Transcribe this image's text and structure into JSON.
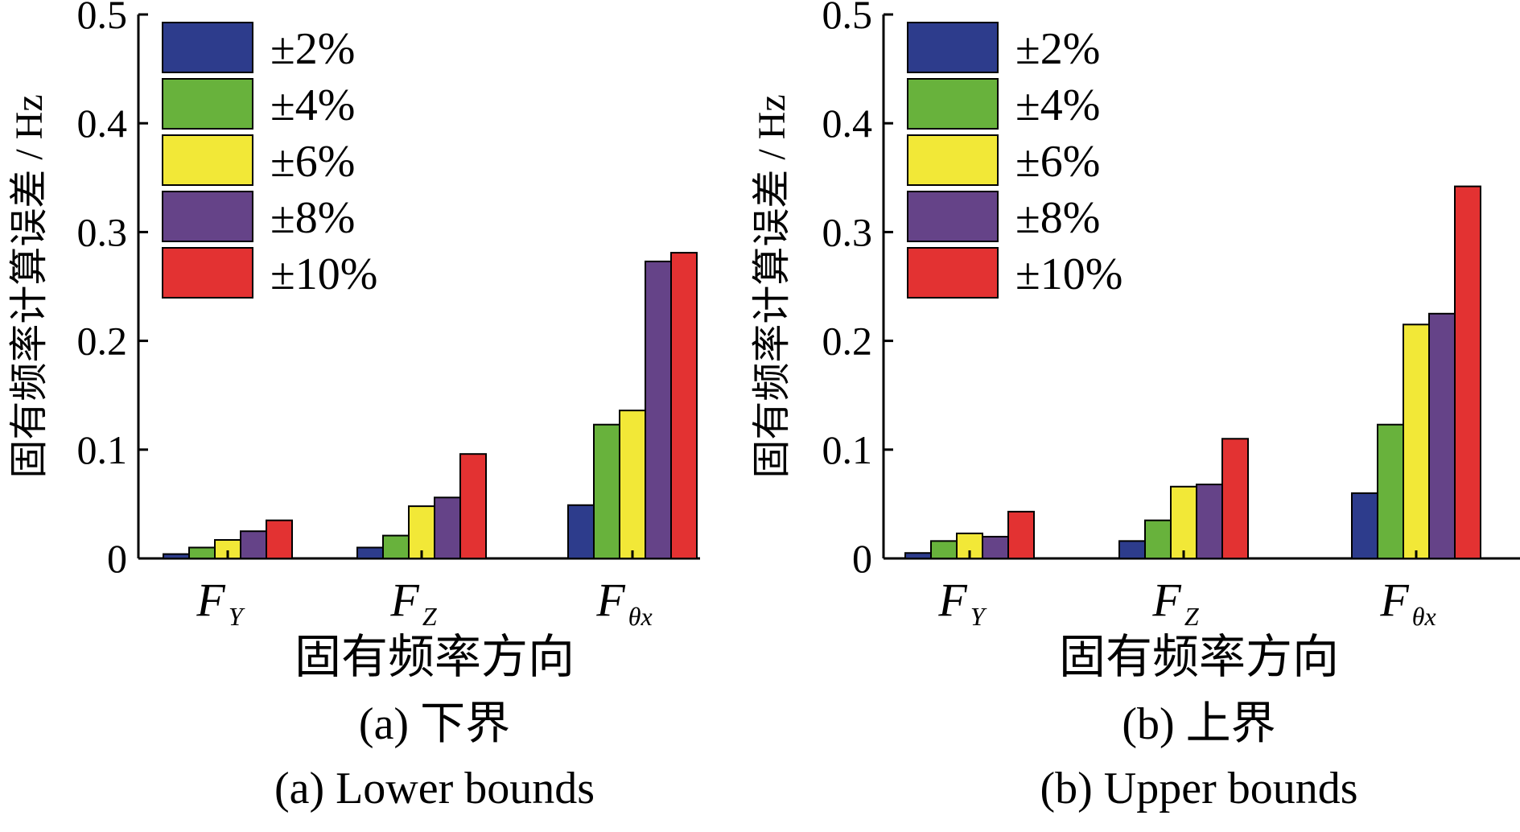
{
  "chart_data": [
    {
      "type": "bar",
      "caption_cn": "(a) 下界",
      "caption_en": "(a) Lower bounds",
      "xlabel": "固有频率方向",
      "ylabel": "固有频率计算误差 / Hz",
      "ylim": [
        0,
        0.5
      ],
      "yticks": [
        "0",
        "0.1",
        "0.2",
        "0.3",
        "0.4",
        "0.5"
      ],
      "categories": [
        {
          "main": "F",
          "sub": "Y"
        },
        {
          "main": "F",
          "sub": "Z"
        },
        {
          "main": "F",
          "sub": "θx"
        }
      ],
      "series": [
        {
          "name": "±2%",
          "color": "#2d3c8c",
          "values": [
            0.004,
            0.01,
            0.049
          ]
        },
        {
          "name": "±4%",
          "color": "#68b23c",
          "values": [
            0.01,
            0.021,
            0.123
          ]
        },
        {
          "name": "±6%",
          "color": "#f2e837",
          "values": [
            0.017,
            0.048,
            0.136
          ]
        },
        {
          "name": "±8%",
          "color": "#654388",
          "values": [
            0.025,
            0.056,
            0.273
          ]
        },
        {
          "name": "±10%",
          "color": "#e33232",
          "values": [
            0.035,
            0.096,
            0.281
          ]
        }
      ],
      "legend_position": "top-left",
      "grid": false
    },
    {
      "type": "bar",
      "caption_cn": "(b) 上界",
      "caption_en": "(b) Upper bounds",
      "xlabel": "固有频率方向",
      "ylabel": "固有频率计算误差 / Hz",
      "ylim": [
        0,
        0.5
      ],
      "yticks": [
        "0",
        "0.1",
        "0.2",
        "0.3",
        "0.4",
        "0.5"
      ],
      "categories": [
        {
          "main": "F",
          "sub": "Y"
        },
        {
          "main": "F",
          "sub": "Z"
        },
        {
          "main": "F",
          "sub": "θx"
        }
      ],
      "series": [
        {
          "name": "±2%",
          "color": "#2d3c8c",
          "values": [
            0.005,
            0.016,
            0.06
          ]
        },
        {
          "name": "±4%",
          "color": "#68b23c",
          "values": [
            0.016,
            0.035,
            0.123
          ]
        },
        {
          "name": "±6%",
          "color": "#f2e837",
          "values": [
            0.023,
            0.066,
            0.215
          ]
        },
        {
          "name": "±8%",
          "color": "#654388",
          "values": [
            0.02,
            0.068,
            0.225
          ]
        },
        {
          "name": "±10%",
          "color": "#e33232",
          "values": [
            0.043,
            0.11,
            0.342
          ]
        }
      ],
      "legend_position": "top-left",
      "grid": false
    }
  ]
}
